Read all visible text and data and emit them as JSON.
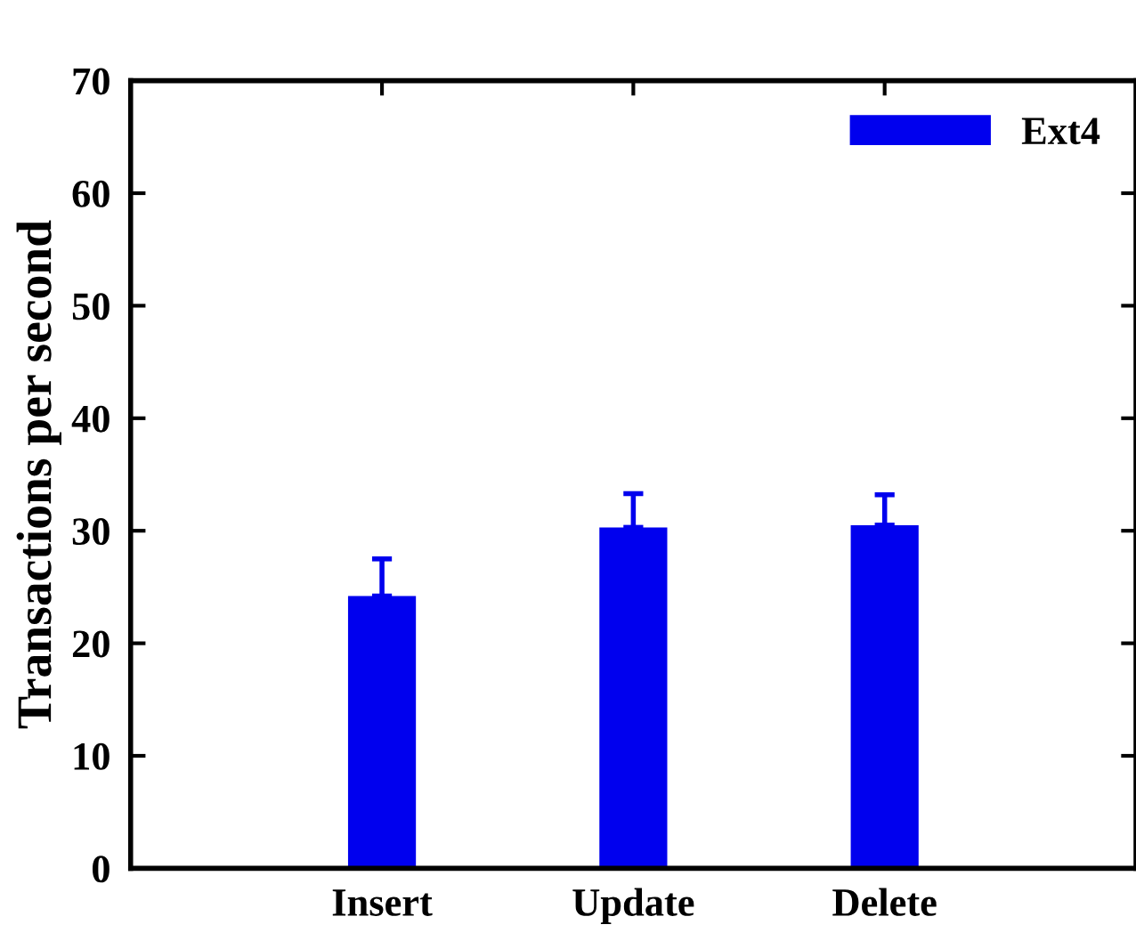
{
  "chart_data": {
    "type": "bar",
    "ylabel": "Transactions per second",
    "categories": [
      "Insert",
      "Update",
      "Delete"
    ],
    "series": [
      {
        "name": "Ext4",
        "color": "#0000ee",
        "values": [
          24.2,
          30.3,
          30.5
        ],
        "errors": [
          [
            24.2,
            27.5
          ],
          [
            30.3,
            33.3
          ],
          [
            30.5,
            33.2
          ]
        ]
      }
    ],
    "ylim": [
      0,
      70
    ],
    "yticks": [
      0,
      10,
      20,
      30,
      40,
      50,
      60,
      70
    ],
    "grid": false,
    "legend": "top right"
  }
}
